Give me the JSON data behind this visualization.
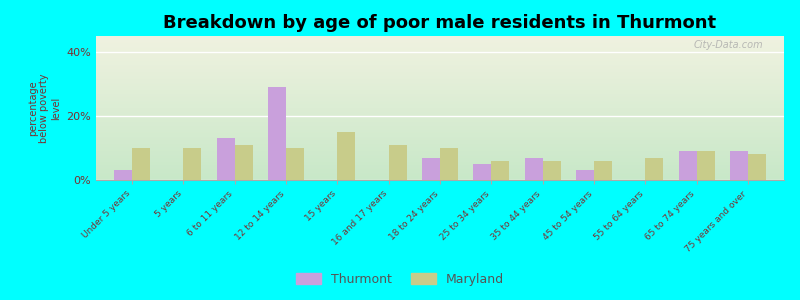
{
  "title": "Breakdown by age of poor male residents in Thurmont",
  "categories": [
    "Under 5 years",
    "5 years",
    "6 to 11 years",
    "12 to 14 years",
    "15 years",
    "16 and 17 years",
    "18 to 24 years",
    "25 to 34 years",
    "35 to 44 years",
    "45 to 54 years",
    "55 to 64 years",
    "65 to 74 years",
    "75 years and over"
  ],
  "thurmont": [
    3,
    0,
    13,
    29,
    0,
    0,
    7,
    5,
    7,
    3,
    0,
    9,
    9
  ],
  "maryland": [
    10,
    10,
    11,
    10,
    15,
    11,
    10,
    6,
    6,
    6,
    7,
    9,
    8
  ],
  "thurmont_color": "#c9a0dc",
  "maryland_color": "#c8cc8a",
  "ylabel": "percentage\nbelow poverty\nlevel",
  "yticks": [
    0,
    20,
    40
  ],
  "ytick_labels": [
    "0%",
    "20%",
    "40%"
  ],
  "ylim": [
    0,
    45
  ],
  "bg_top_color": "#f0f2e0",
  "bg_bottom_color": "#c8e8c8",
  "outer_bg_color": "#00ffff",
  "title_fontsize": 13,
  "bar_width": 0.35,
  "watermark": "City-Data.com",
  "axis_label_color": "#7a3030",
  "tick_label_color": "#7a3030"
}
